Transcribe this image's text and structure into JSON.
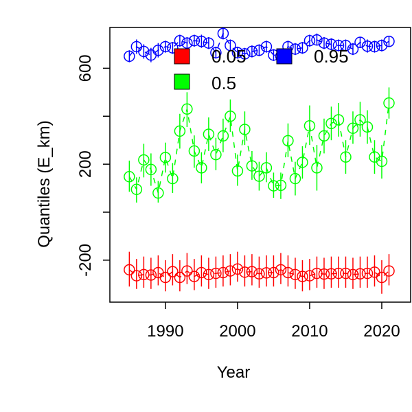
{
  "chart_data": {
    "type": "scatter",
    "xlabel": "Year",
    "ylabel": "Quantiles (E_km)",
    "xlim": [
      1982.3,
      2024.0
    ],
    "ylim": [
      -375,
      770
    ],
    "xticks": [
      1990,
      2000,
      2010,
      2020
    ],
    "yticks": [
      -200,
      0,
      200,
      400,
      600
    ],
    "ytick_labels": [
      "-200",
      "",
      "200",
      "",
      "600"
    ],
    "legend_position": "top",
    "series": [
      {
        "name": "0.05",
        "color": "#ff0000",
        "x": [
          1985,
          1986,
          1987,
          1988,
          1989,
          1990,
          1991,
          1992,
          1993,
          1994,
          1995,
          1996,
          1997,
          1998,
          1999,
          2000,
          2001,
          2002,
          2003,
          2004,
          2005,
          2006,
          2007,
          2008,
          2009,
          2010,
          2011,
          2012,
          2013,
          2014,
          2015,
          2016,
          2017,
          2018,
          2019,
          2020,
          2021
        ],
        "y": [
          -240,
          -265,
          -260,
          -262,
          -252,
          -272,
          -248,
          -272,
          -245,
          -268,
          -252,
          -260,
          -255,
          -252,
          -245,
          -237,
          -250,
          -248,
          -257,
          -253,
          -252,
          -240,
          -252,
          -260,
          -268,
          -265,
          -255,
          -258,
          -257,
          -255,
          -255,
          -260,
          -257,
          -255,
          -250,
          -272,
          -245
        ],
        "lower": [
          -310,
          -320,
          -315,
          -320,
          -305,
          -330,
          -305,
          -330,
          -300,
          -325,
          -310,
          -320,
          -315,
          -310,
          -305,
          -290,
          -310,
          -305,
          -315,
          -310,
          -310,
          -300,
          -310,
          -320,
          -330,
          -325,
          -315,
          -320,
          -315,
          -315,
          -315,
          -320,
          -315,
          -315,
          -310,
          -340,
          -305
        ],
        "upper": [
          -165,
          -195,
          -185,
          -190,
          -180,
          -200,
          -175,
          -200,
          -170,
          -195,
          -180,
          -190,
          -185,
          -180,
          -175,
          -165,
          -180,
          -175,
          -185,
          -180,
          -180,
          -170,
          -180,
          -190,
          -200,
          -195,
          -185,
          -190,
          -185,
          -185,
          -185,
          -190,
          -185,
          -185,
          -180,
          -200,
          -175
        ]
      },
      {
        "name": "0.5",
        "color": "#00ff00",
        "x": [
          1985,
          1986,
          1987,
          1988,
          1989,
          1990,
          1991,
          1992,
          1993,
          1994,
          1995,
          1996,
          1997,
          1998,
          1999,
          2000,
          2001,
          2002,
          2003,
          2004,
          2005,
          2006,
          2007,
          2008,
          2009,
          2010,
          2011,
          2012,
          2013,
          2014,
          2015,
          2016,
          2017,
          2018,
          2019,
          2020,
          2021
        ],
        "y": [
          148,
          95,
          218,
          178,
          80,
          228,
          140,
          338,
          430,
          255,
          185,
          325,
          240,
          318,
          400,
          172,
          345,
          193,
          150,
          185,
          110,
          112,
          298,
          140,
          208,
          360,
          185,
          318,
          370,
          385,
          230,
          350,
          385,
          355,
          230,
          212,
          455
        ],
        "lower": [
          85,
          40,
          145,
          110,
          40,
          165,
          80,
          265,
          355,
          185,
          120,
          255,
          175,
          250,
          335,
          110,
          280,
          135,
          90,
          125,
          60,
          55,
          230,
          70,
          140,
          280,
          90,
          245,
          300,
          315,
          160,
          285,
          315,
          285,
          160,
          140,
          390
        ],
        "upper": [
          215,
          145,
          285,
          245,
          130,
          290,
          205,
          410,
          500,
          320,
          250,
          395,
          310,
          390,
          470,
          240,
          420,
          255,
          210,
          250,
          165,
          165,
          370,
          210,
          275,
          445,
          280,
          390,
          440,
          455,
          300,
          420,
          460,
          425,
          300,
          280,
          520
        ]
      },
      {
        "name": "0.95",
        "color": "#0000ff",
        "x": [
          1985,
          1986,
          1987,
          1988,
          1989,
          1990,
          1991,
          1992,
          1993,
          1994,
          1995,
          1996,
          1997,
          1998,
          1999,
          2000,
          2001,
          2002,
          2003,
          2004,
          2005,
          2006,
          2007,
          2008,
          2009,
          2010,
          2011,
          2012,
          2013,
          2014,
          2015,
          2016,
          2017,
          2018,
          2019,
          2020,
          2021
        ],
        "y": [
          650,
          690,
          670,
          655,
          675,
          690,
          685,
          715,
          705,
          715,
          712,
          705,
          665,
          745,
          695,
          665,
          660,
          670,
          675,
          690,
          655,
          650,
          690,
          680,
          685,
          715,
          718,
          705,
          700,
          695,
          695,
          680,
          708,
          692,
          690,
          695,
          712
        ],
        "lower": [
          625,
          660,
          640,
          625,
          645,
          665,
          660,
          690,
          680,
          690,
          685,
          680,
          640,
          720,
          670,
          640,
          635,
          645,
          650,
          665,
          630,
          625,
          665,
          655,
          660,
          690,
          695,
          680,
          675,
          670,
          670,
          655,
          685,
          665,
          665,
          670,
          690
        ],
        "upper": [
          675,
          720,
          700,
          685,
          705,
          715,
          710,
          740,
          730,
          740,
          740,
          730,
          690,
          770,
          720,
          690,
          685,
          695,
          700,
          715,
          680,
          675,
          715,
          705,
          710,
          740,
          745,
          730,
          725,
          720,
          720,
          705,
          730,
          720,
          715,
          720,
          735
        ]
      }
    ]
  }
}
